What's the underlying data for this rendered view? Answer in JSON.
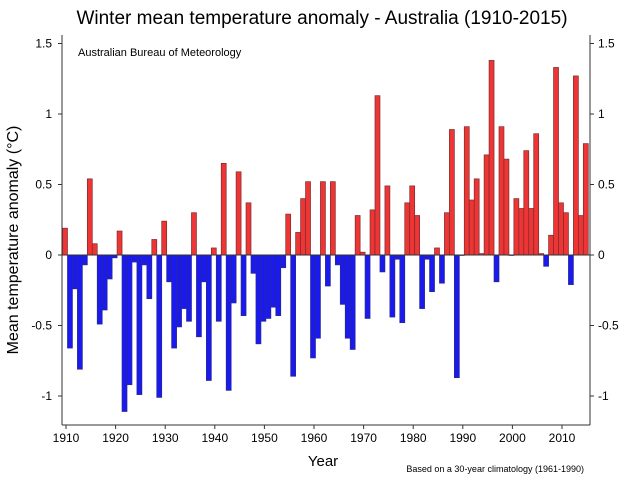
{
  "chart_data": {
    "type": "bar",
    "title": "Winter mean temperature anomaly - Australia (1910-2015)",
    "xlabel": "Year",
    "ylabel": "Mean temperature anomaly (°C)",
    "source_note": "Australian Bureau of Meteorology",
    "footnote": "Based on a 30-year climatology (1961-1990)",
    "ylim": [
      -1.2,
      1.55
    ],
    "xlim": [
      1910,
      2015
    ],
    "yticks": [
      -1,
      -0.5,
      0,
      0.5,
      1,
      1.5
    ],
    "ytick_labels": [
      "-1",
      "-0.5",
      "0",
      "0.5",
      "1",
      "1.5"
    ],
    "xticks": [
      1910,
      1920,
      1930,
      1940,
      1950,
      1960,
      1970,
      1980,
      1990,
      2000,
      2010
    ],
    "xtick_labels": [
      "1910",
      "1920",
      "1930",
      "1940",
      "1950",
      "1960",
      "1970",
      "1980",
      "1990",
      "2000",
      "2010"
    ],
    "grid": false,
    "colors": {
      "positive": "#ee3535",
      "negative": "#1a1aee",
      "positive_edge": "#7a2d2d",
      "negative_edge": "#2a2a8a"
    },
    "start_year": 1910,
    "values": [
      0.19,
      -0.66,
      -0.24,
      -0.81,
      -0.07,
      0.54,
      0.08,
      -0.49,
      -0.39,
      -0.17,
      -0.02,
      0.17,
      -1.11,
      -0.92,
      -0.05,
      -0.99,
      -0.07,
      -0.31,
      0.11,
      -1.01,
      0.24,
      -0.19,
      -0.66,
      -0.51,
      -0.38,
      -0.47,
      0.3,
      -0.58,
      -0.19,
      -0.89,
      0.05,
      -0.47,
      0.65,
      -0.96,
      -0.34,
      0.59,
      -0.43,
      0.37,
      -0.13,
      -0.63,
      -0.47,
      -0.45,
      -0.37,
      -0.43,
      -0.09,
      0.29,
      -0.86,
      0.16,
      0.4,
      0.52,
      -0.73,
      -0.59,
      0.52,
      -0.22,
      0.52,
      -0.07,
      -0.35,
      -0.59,
      -0.67,
      0.28,
      0.02,
      -0.45,
      0.32,
      1.13,
      -0.12,
      0.49,
      -0.44,
      -0.03,
      -0.48,
      0.37,
      0.49,
      0.28,
      -0.38,
      -0.03,
      -0.26,
      0.05,
      -0.2,
      0.3,
      0.89,
      -0.87,
      0.0,
      0.91,
      0.39,
      0.54,
      0.01,
      0.71,
      1.38,
      -0.19,
      0.91,
      0.68,
      0.0,
      0.4,
      0.33,
      0.74,
      0.33,
      0.86,
      0.01,
      -0.08,
      0.14,
      1.33,
      0.37,
      0.3,
      -0.21,
      1.27,
      0.28,
      0.79
    ]
  }
}
